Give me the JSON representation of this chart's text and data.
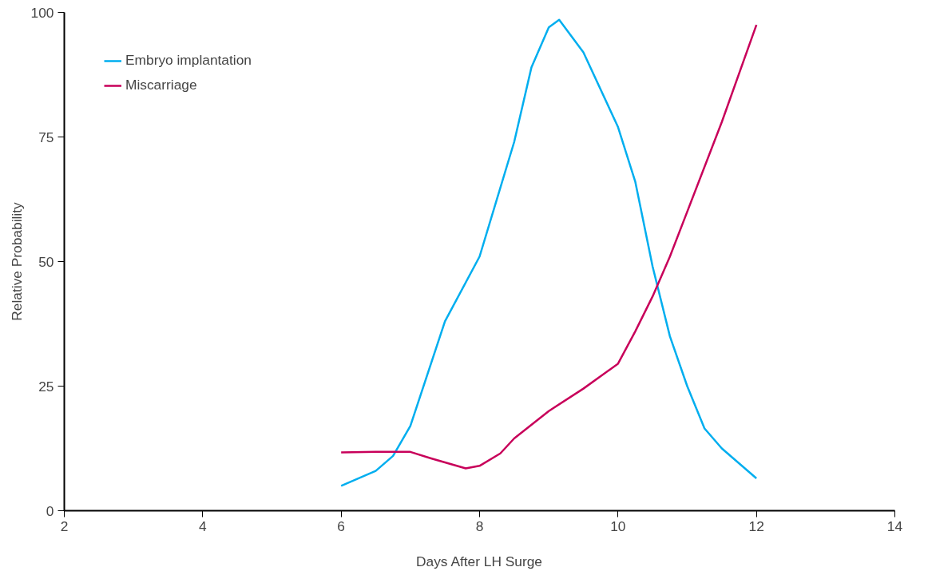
{
  "chart_data": {
    "type": "line",
    "xlabel": "Days After LH Surge",
    "ylabel": "Relative Probability",
    "xlim": [
      2,
      14
    ],
    "xticks": [
      2,
      4,
      6,
      8,
      10,
      12,
      14
    ],
    "ylim": [
      0,
      100
    ],
    "yticks": [
      0,
      25,
      50,
      75,
      100
    ],
    "grid": false,
    "legend": "top left",
    "marker": "none",
    "line_style": "solid",
    "series": [
      {
        "name": "Embryo implantation",
        "color": "#00aeef",
        "x": [
          6.0,
          6.5,
          6.75,
          7.0,
          7.5,
          8.0,
          8.5,
          8.75,
          9.0,
          9.15,
          9.5,
          10.0,
          10.25,
          10.5,
          10.75,
          11.0,
          11.25,
          11.5,
          12.0
        ],
        "values": [
          5,
          8,
          11,
          17,
          38,
          51,
          74,
          89,
          97,
          98.5,
          92,
          77,
          66,
          49,
          35,
          25,
          16.5,
          12.5,
          6.5
        ]
      },
      {
        "name": "Miscarriage",
        "color": "#c8005a",
        "x": [
          6.0,
          6.5,
          7.0,
          7.3,
          7.8,
          8.0,
          8.3,
          8.5,
          9.0,
          9.5,
          10.0,
          10.25,
          10.5,
          10.75,
          11.0,
          11.5,
          12.0
        ],
        "values": [
          11.7,
          11.8,
          11.8,
          10.5,
          8.5,
          9,
          11.5,
          14.5,
          20,
          24.5,
          29.5,
          36,
          43,
          51,
          60,
          78,
          97.5
        ]
      }
    ]
  }
}
